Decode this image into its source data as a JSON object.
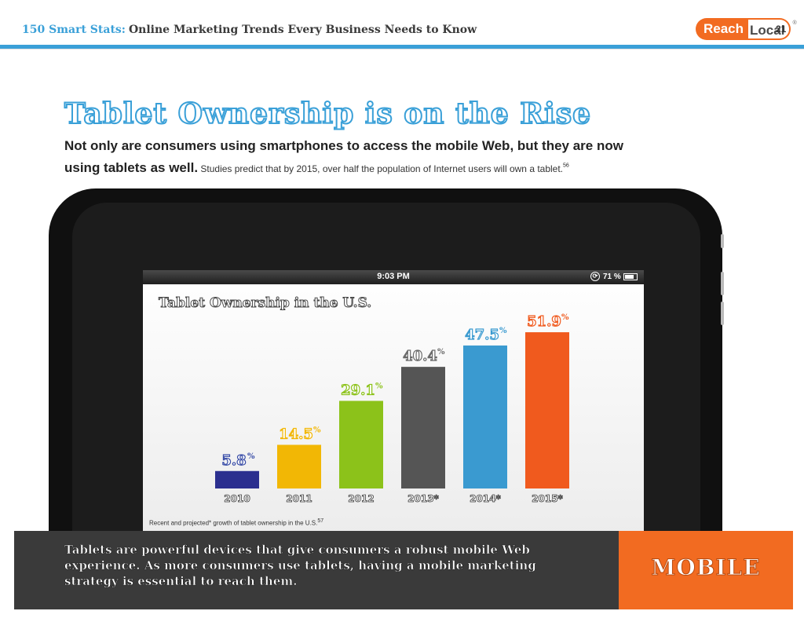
{
  "header": {
    "series_label": "150 Smart Stats:",
    "subtitle": "Online Marketing Trends Every Business Needs to Know",
    "logo_reach": "Reach",
    "logo_local": "Local",
    "logo_mark": "®",
    "page_number": "21"
  },
  "title": "Tablet Ownership is on the Rise",
  "intro": {
    "line1": "Not only are consumers using smartphones to access the mobile Web, but they are now",
    "line2_bold": "using tablets as well.",
    "line2_rest": " Studies predict that by 2015, over half the population of Internet users will own a tablet.",
    "footnote": "56"
  },
  "tablet_status": {
    "time": "9:03 PM",
    "lock_glyph": "⟳",
    "battery": "71 %",
    "battery_fraction": 0.71
  },
  "chart_data": {
    "type": "bar",
    "title": "Tablet Ownership in the U.S.",
    "categories": [
      "2010",
      "2011",
      "2012",
      "2013*",
      "2014*",
      "2015*"
    ],
    "values": [
      5.8,
      14.5,
      29.1,
      40.4,
      47.5,
      51.9
    ],
    "value_labels": [
      "5.8",
      "14.5",
      "29.1",
      "40.4",
      "47.5",
      "51.9"
    ],
    "unit": "%",
    "colors": [
      "#2b2f8f",
      "#f2b705",
      "#8cc21a",
      "#555555",
      "#3a9ad0",
      "#f05a1e"
    ],
    "label_colors": [
      "#3b4fa8",
      "#f2b705",
      "#8cc21a",
      "#6a6a6a",
      "#3a9ad0",
      "#f05a1e"
    ],
    "ylim": [
      0,
      60
    ],
    "xlabel": "",
    "ylabel": "",
    "grid": false,
    "caption": "Recent and projected* growth of tablet ownership in the U.S.",
    "caption_footnote": "57"
  },
  "bottom": {
    "text": "Tablets are powerful devices that give consumers a robust mobile Web experience. As more consumers use tablets, having a mobile marketing strategy is essential to reach them.",
    "tag": "MOBILE"
  },
  "colors": {
    "accent_blue": "#3aa0d8",
    "accent_orange": "#f26b21",
    "dark_panel": "#3a3a3a"
  }
}
